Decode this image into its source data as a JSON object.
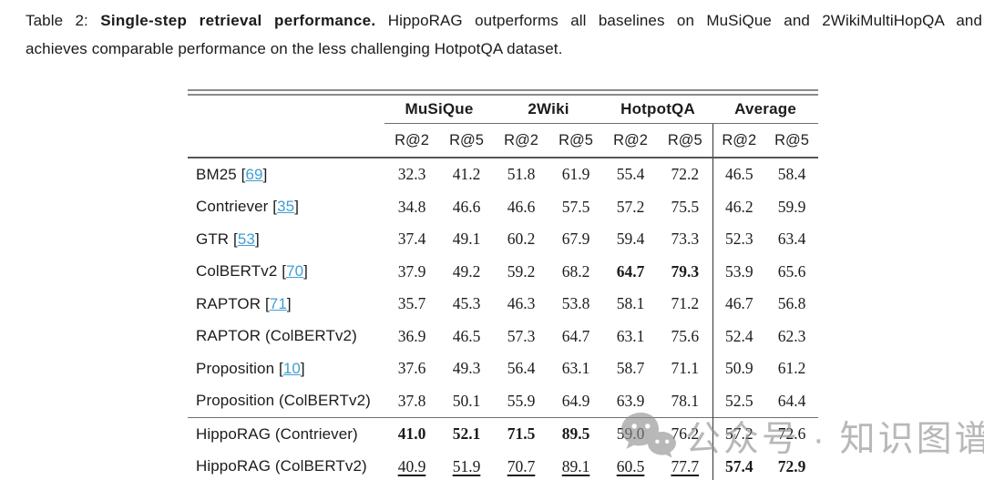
{
  "caption": {
    "line1_prefix": "Table 2:",
    "line1_bold": "Single-step retrieval performance.",
    "line1_rest": "HippoRAG outperforms all baselines on MuSiQue and 2WikiMultiHopQA and",
    "line2": "achieves comparable performance on the less challenging HotpotQA dataset."
  },
  "table": {
    "col_groups": [
      "MuSiQue",
      "2Wiki",
      "HotpotQA",
      "Average"
    ],
    "sub_headers": [
      "R@2",
      "R@5",
      "R@2",
      "R@5",
      "R@2",
      "R@5",
      "R@2",
      "R@5"
    ],
    "rows": [
      {
        "label": "BM25",
        "cite": "69",
        "section_start": false,
        "values": [
          "32.3",
          "41.2",
          "51.8",
          "61.9",
          "55.4",
          "72.2",
          "46.5",
          "58.4"
        ],
        "styles": [
          "",
          "",
          "",
          "",
          "",
          "",
          "",
          ""
        ]
      },
      {
        "label": "Contriever",
        "cite": "35",
        "section_start": false,
        "values": [
          "34.8",
          "46.6",
          "46.6",
          "57.5",
          "57.2",
          "75.5",
          "46.2",
          "59.9"
        ],
        "styles": [
          "",
          "",
          "",
          "",
          "",
          "",
          "",
          ""
        ]
      },
      {
        "label": "GTR",
        "cite": "53",
        "section_start": false,
        "values": [
          "37.4",
          "49.1",
          "60.2",
          "67.9",
          "59.4",
          "73.3",
          "52.3",
          "63.4"
        ],
        "styles": [
          "",
          "",
          "",
          "",
          "",
          "",
          "",
          ""
        ]
      },
      {
        "label": "ColBERTv2",
        "cite": "70",
        "section_start": false,
        "values": [
          "37.9",
          "49.2",
          "59.2",
          "68.2",
          "64.7",
          "79.3",
          "53.9",
          "65.6"
        ],
        "styles": [
          "",
          "",
          "",
          "",
          "b",
          "b",
          "",
          ""
        ]
      },
      {
        "label": "RAPTOR",
        "cite": "71",
        "section_start": false,
        "values": [
          "35.7",
          "45.3",
          "46.3",
          "53.8",
          "58.1",
          "71.2",
          "46.7",
          "56.8"
        ],
        "styles": [
          "",
          "",
          "",
          "",
          "",
          "",
          "",
          ""
        ]
      },
      {
        "label": "RAPTOR (ColBERTv2)",
        "cite": null,
        "section_start": false,
        "values": [
          "36.9",
          "46.5",
          "57.3",
          "64.7",
          "63.1",
          "75.6",
          "52.4",
          "62.3"
        ],
        "styles": [
          "",
          "",
          "",
          "",
          "",
          "",
          "",
          ""
        ]
      },
      {
        "label": "Proposition",
        "cite": "10",
        "section_start": false,
        "values": [
          "37.6",
          "49.3",
          "56.4",
          "63.1",
          "58.7",
          "71.1",
          "50.9",
          "61.2"
        ],
        "styles": [
          "",
          "",
          "",
          "",
          "",
          "",
          "",
          ""
        ]
      },
      {
        "label": "Proposition (ColBERTv2)",
        "cite": null,
        "section_start": false,
        "values": [
          "37.8",
          "50.1",
          "55.9",
          "64.9",
          "63.9",
          "78.1",
          "52.5",
          "64.4"
        ],
        "styles": [
          "",
          "",
          "",
          "",
          "",
          "",
          "",
          ""
        ]
      },
      {
        "label": "HippoRAG (Contriever)",
        "cite": null,
        "section_start": true,
        "values": [
          "41.0",
          "52.1",
          "71.5",
          "89.5",
          "59.0",
          "76.2",
          "57.2",
          "72.6"
        ],
        "styles": [
          "b",
          "b",
          "b",
          "b",
          "",
          "",
          "",
          ""
        ]
      },
      {
        "label": "HippoRAG (ColBERTv2)",
        "cite": null,
        "section_start": false,
        "values": [
          "40.9",
          "51.9",
          "70.7",
          "89.1",
          "60.5",
          "77.7",
          "57.4",
          "72.9"
        ],
        "styles": [
          "u",
          "u",
          "u",
          "u",
          "u",
          "u",
          "b",
          "b"
        ]
      }
    ]
  },
  "watermark": {
    "icon": "wechat-icon",
    "label": "公众号 · 知识图谱科技"
  },
  "colors": {
    "link": "#3f9fd4",
    "rule_heavy": "#8a8a8a",
    "rule_mid": "#565656",
    "vertical_rule": "#333333",
    "text": "#1c1c1c",
    "watermark": "#8d8d8d"
  }
}
